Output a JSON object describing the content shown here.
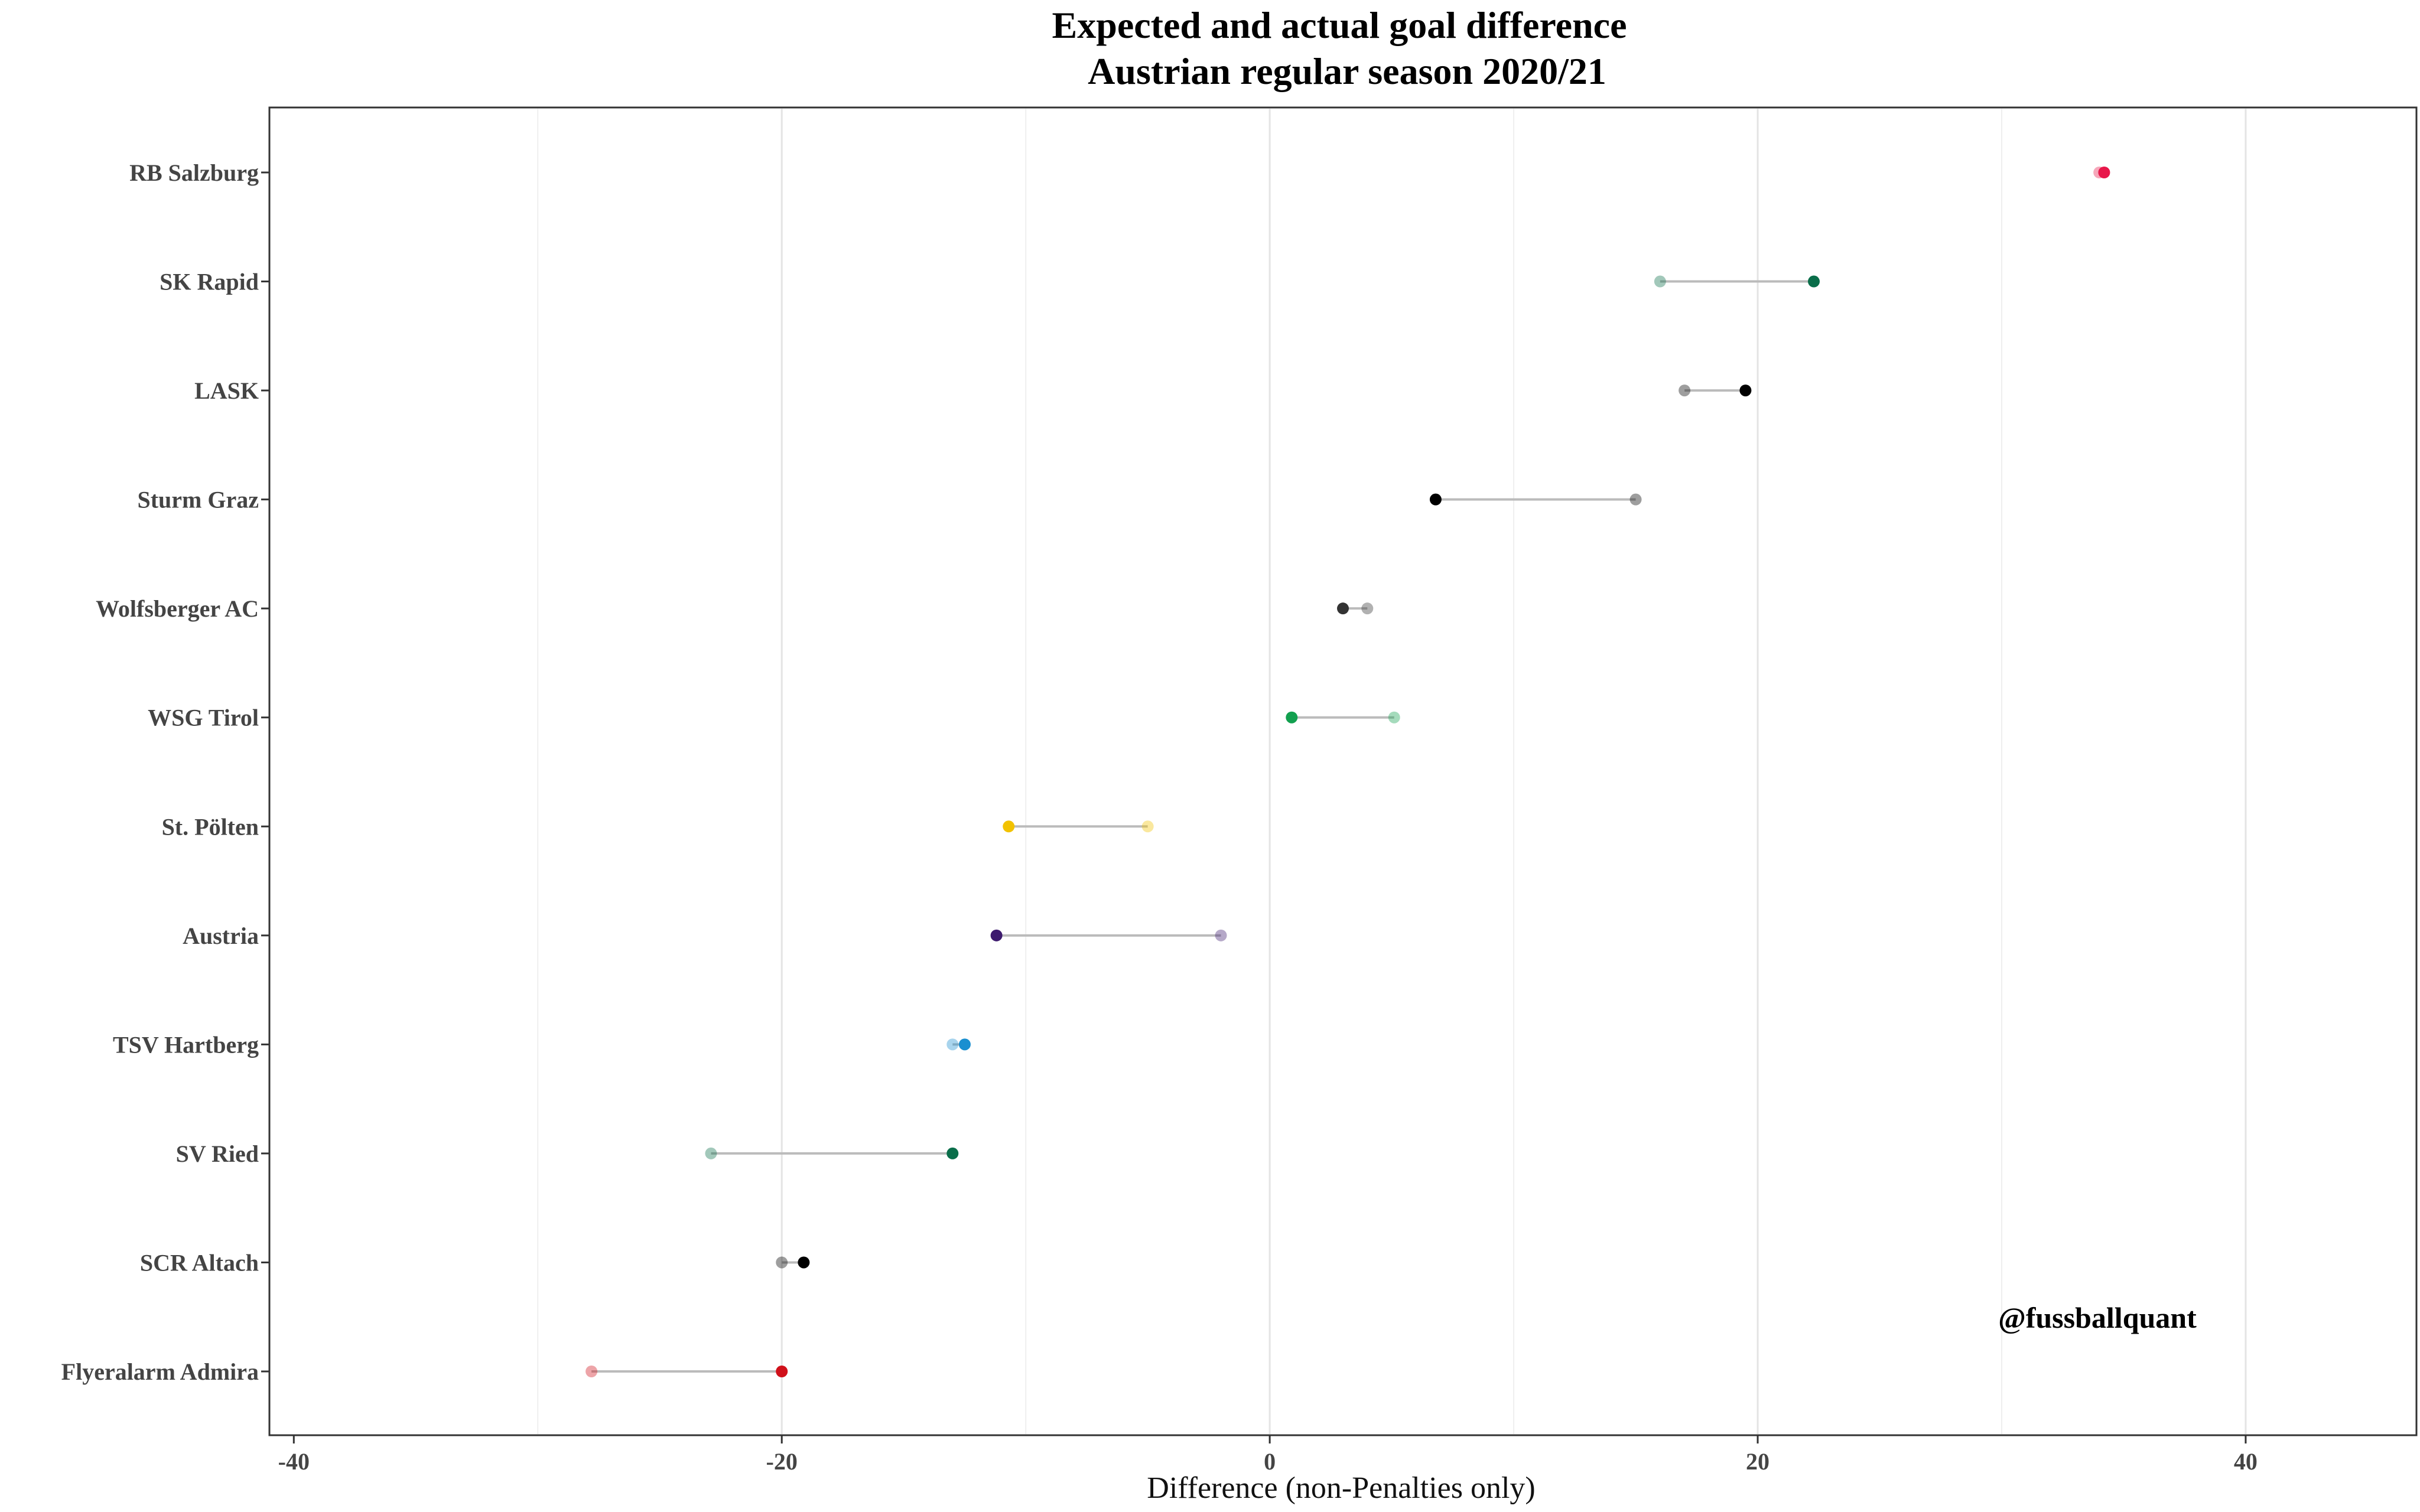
{
  "chart_data": {
    "type": "dumbbell",
    "title_lines": [
      "Expected and actual goal difference",
      "Austrian regular season 2020/21"
    ],
    "xlabel": "Difference (non-Penalties only)",
    "ylabel": "",
    "xlim": [
      -41,
      47
    ],
    "x_ticks": [
      -40,
      -20,
      0,
      20,
      40
    ],
    "x_tick_labels": [
      "-40",
      "-20",
      "0",
      "20",
      "40"
    ],
    "grid": "vertical",
    "watermark": "@fussballquant",
    "teams": [
      {
        "name": "RB Salzburg",
        "light": 34.0,
        "dark": 34.2,
        "color": "#e8174a"
      },
      {
        "name": "SK Rapid",
        "light": 16.0,
        "dark": 22.3,
        "color": "#0a6e4a"
      },
      {
        "name": "LASK",
        "light": 17.0,
        "dark": 19.5,
        "color": "#000000"
      },
      {
        "name": "Sturm Graz",
        "light": 15.0,
        "dark": 6.8,
        "color": "#000000"
      },
      {
        "name": "Wolfsberger AC",
        "light": 4.0,
        "dark": 3.0,
        "color": "#333333"
      },
      {
        "name": "WSG Tirol",
        "light": 5.1,
        "dark": 0.9,
        "color": "#12a04f"
      },
      {
        "name": "St. Pölten",
        "light": -5.0,
        "dark": -10.7,
        "color": "#f2c200"
      },
      {
        "name": "Austria",
        "light": -2.0,
        "dark": -11.2,
        "color": "#3d1a6e"
      },
      {
        "name": "TSV Hartberg",
        "light": -13.0,
        "dark": -12.5,
        "color": "#1a8fd0"
      },
      {
        "name": "SV Ried",
        "light": -22.9,
        "dark": -13.0,
        "color": "#0a6e4a"
      },
      {
        "name": "SCR Altach",
        "light": -20.0,
        "dark": -19.1,
        "color": "#000000"
      },
      {
        "name": "Flyeralarm Admira",
        "light": -27.8,
        "dark": -20.0,
        "color": "#d0101a"
      }
    ]
  }
}
